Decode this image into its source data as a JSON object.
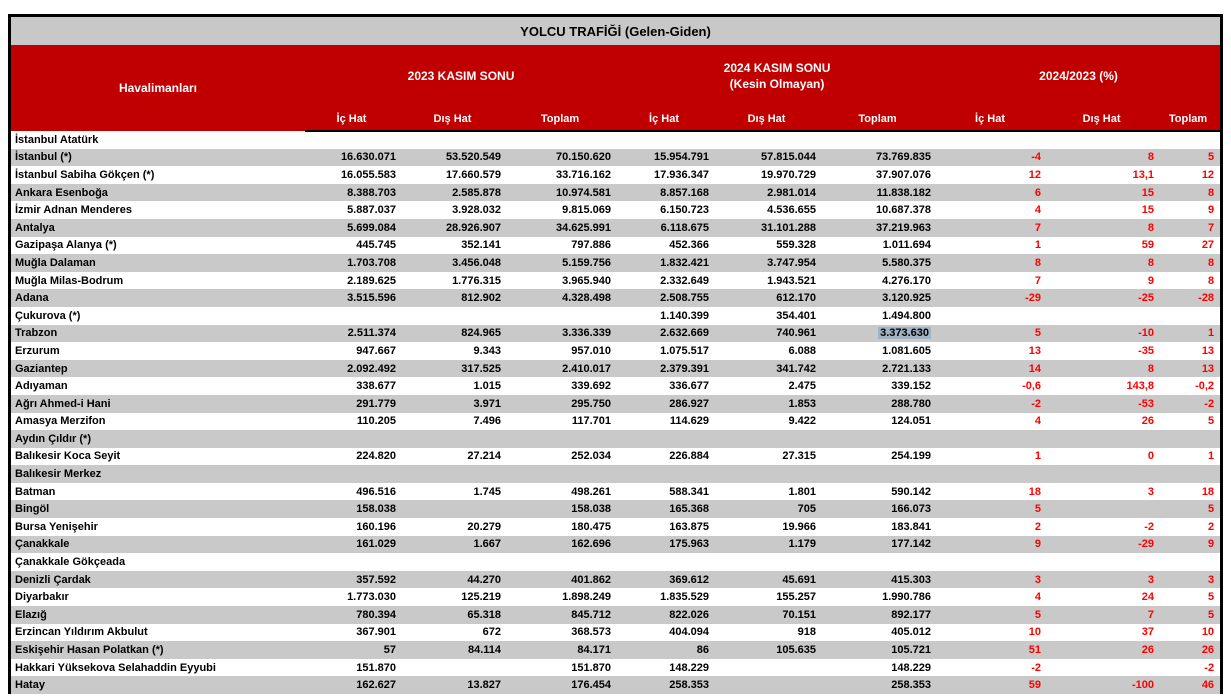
{
  "title": "YOLCU TRAFİĞİ (Gelen-Giden)",
  "colors": {
    "header_red": "#c00000",
    "title_gray": "#c8c8c8",
    "row_alt_gray": "#c9c9c9",
    "percent_red": "#ff0000",
    "selection_blue": "#9fb3c4"
  },
  "table": {
    "airport_column_header": "Havalimanları",
    "groups": [
      {
        "label": "2023 KASIM SONU",
        "sublabel": ""
      },
      {
        "label": "2024 KASIM SONU",
        "sublabel": "(Kesin Olmayan)"
      },
      {
        "label": "2024/2023 (%)",
        "sublabel": ""
      }
    ],
    "subheaders": [
      "İç Hat",
      "Dış Hat",
      "Toplam"
    ],
    "selected_cell": {
      "row": 11,
      "col": 5
    },
    "rows": [
      {
        "name": "İstanbul Atatürk",
        "values": [
          "",
          "",
          "",
          "",
          "",
          "",
          "",
          "",
          ""
        ]
      },
      {
        "name": "İstanbul (*)",
        "values": [
          "16.630.071",
          "53.520.549",
          "70.150.620",
          "15.954.791",
          "57.815.044",
          "73.769.835",
          "-4",
          "8",
          "5"
        ]
      },
      {
        "name": "İstanbul Sabiha Gökçen (*)",
        "values": [
          "16.055.583",
          "17.660.579",
          "33.716.162",
          "17.936.347",
          "19.970.729",
          "37.907.076",
          "12",
          "13,1",
          "12"
        ]
      },
      {
        "name": "Ankara Esenboğa",
        "values": [
          "8.388.703",
          "2.585.878",
          "10.974.581",
          "8.857.168",
          "2.981.014",
          "11.838.182",
          "6",
          "15",
          "8"
        ]
      },
      {
        "name": "İzmir Adnan Menderes",
        "values": [
          "5.887.037",
          "3.928.032",
          "9.815.069",
          "6.150.723",
          "4.536.655",
          "10.687.378",
          "4",
          "15",
          "9"
        ]
      },
      {
        "name": "Antalya",
        "values": [
          "5.699.084",
          "28.926.907",
          "34.625.991",
          "6.118.675",
          "31.101.288",
          "37.219.963",
          "7",
          "8",
          "7"
        ]
      },
      {
        "name": "Gazipaşa Alanya (*)",
        "values": [
          "445.745",
          "352.141",
          "797.886",
          "452.366",
          "559.328",
          "1.011.694",
          "1",
          "59",
          "27"
        ]
      },
      {
        "name": "Muğla Dalaman",
        "values": [
          "1.703.708",
          "3.456.048",
          "5.159.756",
          "1.832.421",
          "3.747.954",
          "5.580.375",
          "8",
          "8",
          "8"
        ]
      },
      {
        "name": "Muğla Milas-Bodrum",
        "values": [
          "2.189.625",
          "1.776.315",
          "3.965.940",
          "2.332.649",
          "1.943.521",
          "4.276.170",
          "7",
          "9",
          "8"
        ]
      },
      {
        "name": "Adana",
        "values": [
          "3.515.596",
          "812.902",
          "4.328.498",
          "2.508.755",
          "612.170",
          "3.120.925",
          "-29",
          "-25",
          "-28"
        ]
      },
      {
        "name": "Çukurova (*)",
        "values": [
          "",
          "",
          "",
          "1.140.399",
          "354.401",
          "1.494.800",
          "",
          "",
          ""
        ]
      },
      {
        "name": "Trabzon",
        "values": [
          "2.511.374",
          "824.965",
          "3.336.339",
          "2.632.669",
          "740.961",
          "3.373.630",
          "5",
          "-10",
          "1"
        ]
      },
      {
        "name": "Erzurum",
        "values": [
          "947.667",
          "9.343",
          "957.010",
          "1.075.517",
          "6.088",
          "1.081.605",
          "13",
          "-35",
          "13"
        ]
      },
      {
        "name": "Gaziantep",
        "values": [
          "2.092.492",
          "317.525",
          "2.410.017",
          "2.379.391",
          "341.742",
          "2.721.133",
          "14",
          "8",
          "13"
        ]
      },
      {
        "name": "Adıyaman",
        "values": [
          "338.677",
          "1.015",
          "339.692",
          "336.677",
          "2.475",
          "339.152",
          "-0,6",
          "143,8",
          "-0,2"
        ]
      },
      {
        "name": "Ağrı Ahmed-i Hani",
        "values": [
          "291.779",
          "3.971",
          "295.750",
          "286.927",
          "1.853",
          "288.780",
          "-2",
          "-53",
          "-2"
        ]
      },
      {
        "name": "Amasya Merzifon",
        "values": [
          "110.205",
          "7.496",
          "117.701",
          "114.629",
          "9.422",
          "124.051",
          "4",
          "26",
          "5"
        ]
      },
      {
        "name": "Aydın Çıldır (*)",
        "values": [
          "",
          "",
          "",
          "",
          "",
          "",
          "",
          "",
          ""
        ]
      },
      {
        "name": "Balıkesir Koca Seyit",
        "values": [
          "224.820",
          "27.214",
          "252.034",
          "226.884",
          "27.315",
          "254.199",
          "1",
          "0",
          "1"
        ]
      },
      {
        "name": "Balıkesir Merkez",
        "values": [
          "",
          "",
          "",
          "",
          "",
          "",
          "",
          "",
          ""
        ]
      },
      {
        "name": "Batman",
        "values": [
          "496.516",
          "1.745",
          "498.261",
          "588.341",
          "1.801",
          "590.142",
          "18",
          "3",
          "18"
        ]
      },
      {
        "name": "Bingöl",
        "values": [
          "158.038",
          "",
          "158.038",
          "165.368",
          "705",
          "166.073",
          "5",
          "",
          "5"
        ]
      },
      {
        "name": "Bursa Yenişehir",
        "values": [
          "160.196",
          "20.279",
          "180.475",
          "163.875",
          "19.966",
          "183.841",
          "2",
          "-2",
          "2"
        ]
      },
      {
        "name": "Çanakkale",
        "values": [
          "161.029",
          "1.667",
          "162.696",
          "175.963",
          "1.179",
          "177.142",
          "9",
          "-29",
          "9"
        ]
      },
      {
        "name": "Çanakkale Gökçeada",
        "values": [
          "",
          "",
          "",
          "",
          "",
          "",
          "",
          "",
          ""
        ]
      },
      {
        "name": "Denizli Çardak",
        "values": [
          "357.592",
          "44.270",
          "401.862",
          "369.612",
          "45.691",
          "415.303",
          "3",
          "3",
          "3"
        ]
      },
      {
        "name": "Diyarbakır",
        "values": [
          "1.773.030",
          "125.219",
          "1.898.249",
          "1.835.529",
          "155.257",
          "1.990.786",
          "4",
          "24",
          "5"
        ]
      },
      {
        "name": "Elazığ",
        "values": [
          "780.394",
          "65.318",
          "845.712",
          "822.026",
          "70.151",
          "892.177",
          "5",
          "7",
          "5"
        ]
      },
      {
        "name": "Erzincan Yıldırım Akbulut",
        "values": [
          "367.901",
          "672",
          "368.573",
          "404.094",
          "918",
          "405.012",
          "10",
          "37",
          "10"
        ]
      },
      {
        "name": "Eskişehir Hasan Polatkan (*)",
        "values": [
          "57",
          "84.114",
          "84.171",
          "86",
          "105.635",
          "105.721",
          "51",
          "26",
          "26"
        ]
      },
      {
        "name": "Hakkari Yüksekova Selahaddin Eyyubi",
        "values": [
          "151.870",
          "",
          "151.870",
          "148.229",
          "",
          "148.229",
          "-2",
          "",
          "-2"
        ]
      },
      {
        "name": "Hatay",
        "values": [
          "162.627",
          "13.827",
          "176.454",
          "258.353",
          "",
          "258.353",
          "59",
          "-100",
          "46"
        ]
      }
    ]
  }
}
